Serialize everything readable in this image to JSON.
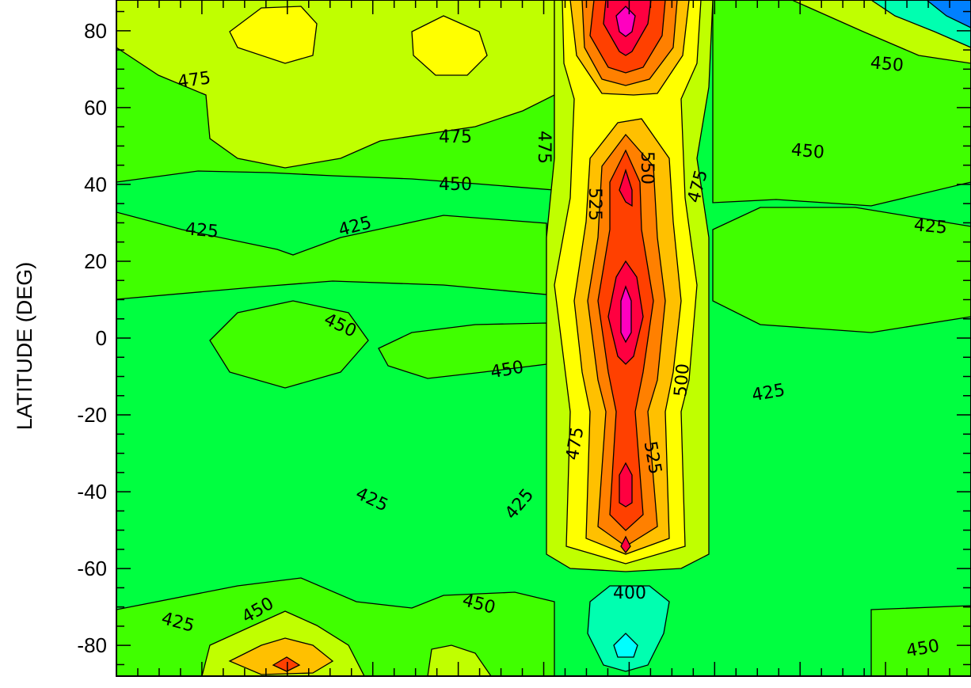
{
  "chart_data": {
    "type": "contour",
    "ylabel": "LATITUDE (DEG)",
    "xlabel": "",
    "ylim": [
      -88,
      88
    ],
    "yticks": [
      80,
      60,
      40,
      20,
      0,
      -20,
      -40,
      -60,
      -80
    ],
    "ytick_labels": [
      "80",
      "60",
      "40",
      "20",
      "0",
      "-20",
      "-40",
      "-60",
      "-80"
    ],
    "contour_levels": [
      375,
      400,
      425,
      450,
      475,
      500,
      525,
      550,
      575,
      600
    ],
    "level_colors": [
      "#00ffff",
      "#00ffb0",
      "#00ff40",
      "#40ff00",
      "#c0ff00",
      "#ffff00",
      "#ffc000",
      "#ff8000",
      "#ff4000",
      "#ff0040",
      "#ff00c0"
    ],
    "labeled_contours": [
      {
        "value": "475",
        "lat": 71
      },
      {
        "value": "475",
        "lat": 55
      },
      {
        "value": "475",
        "lat": 51
      },
      {
        "value": "475",
        "lat": 47
      },
      {
        "value": "475",
        "lat": -24
      },
      {
        "value": "450",
        "lat": 42
      },
      {
        "value": "450",
        "lat": 74
      },
      {
        "value": "450",
        "lat": 51
      },
      {
        "value": "450",
        "lat": 5
      },
      {
        "value": "450",
        "lat": -7
      },
      {
        "value": "450",
        "lat": -72
      },
      {
        "value": "450",
        "lat": -69
      },
      {
        "value": "450",
        "lat": -81
      },
      {
        "value": "425",
        "lat": 30
      },
      {
        "value": "425",
        "lat": 31
      },
      {
        "value": "425",
        "lat": 31
      },
      {
        "value": "425",
        "lat": -39
      },
      {
        "value": "425",
        "lat": -41
      },
      {
        "value": "425",
        "lat": -12
      },
      {
        "value": "425",
        "lat": -71
      },
      {
        "value": "400",
        "lat": -62
      },
      {
        "value": "550",
        "lat": 46
      },
      {
        "value": "525",
        "lat": 36
      },
      {
        "value": "525",
        "lat": -29
      },
      {
        "value": "500",
        "lat": -9
      }
    ],
    "grid": false
  }
}
